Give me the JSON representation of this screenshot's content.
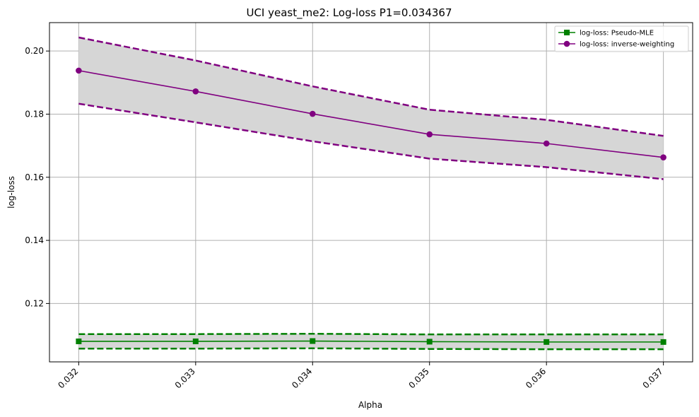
{
  "chart_data": {
    "type": "line",
    "title": "UCI yeast_me2: Log-loss P1=0.034367",
    "xlabel": "Alpha",
    "ylabel": "log-loss",
    "x": [
      0.032,
      0.033,
      0.034,
      0.035,
      0.036,
      0.037
    ],
    "x_tick_labels": [
      "0.032",
      "0.033",
      "0.034",
      "0.035",
      "0.036",
      "0.037"
    ],
    "xlim": [
      0.03175,
      0.03725
    ],
    "ylim": [
      0.1015,
      0.209
    ],
    "y_ticks": [
      0.12,
      0.14,
      0.16,
      0.18,
      0.2
    ],
    "y_tick_labels": [
      "0.12",
      "0.14",
      "0.16",
      "0.18",
      "0.20"
    ],
    "grid": true,
    "legend_position": "top-right",
    "series": [
      {
        "name": "log-loss: Pseudo-MLE",
        "color": "#008000",
        "marker": "square",
        "values": [
          0.108,
          0.108,
          0.1081,
          0.1079,
          0.1078,
          0.1078
        ],
        "upper": [
          0.1103,
          0.1103,
          0.1104,
          0.1102,
          0.1102,
          0.1102
        ],
        "lower": [
          0.1057,
          0.1057,
          0.1058,
          0.1056,
          0.1055,
          0.1055
        ]
      },
      {
        "name": "log-loss: inverse-weighting",
        "color": "#800080",
        "marker": "circle",
        "values": [
          0.1938,
          0.1872,
          0.1801,
          0.1736,
          0.1707,
          0.1663
        ],
        "upper": [
          0.2043,
          0.197,
          0.1888,
          0.1814,
          0.1782,
          0.1731
        ],
        "lower": [
          0.1833,
          0.1774,
          0.1714,
          0.1659,
          0.1632,
          0.1594
        ]
      }
    ],
    "band_color": "#d6d6d6"
  }
}
